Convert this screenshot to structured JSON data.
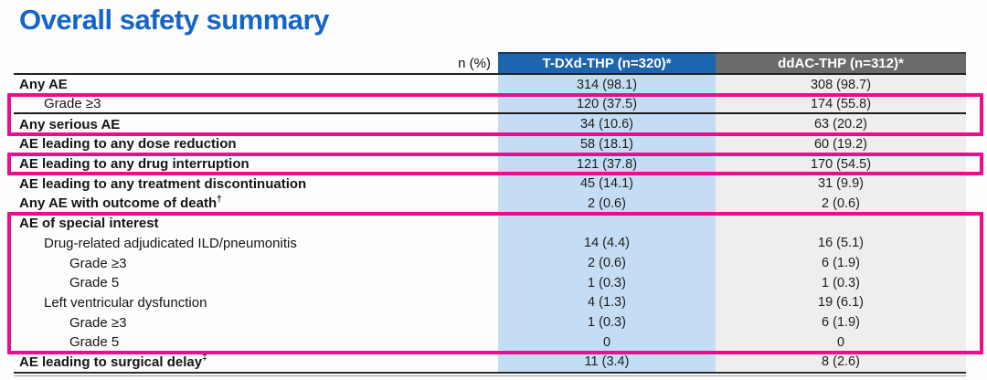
{
  "slide": {
    "title": "Overall safety summary"
  },
  "table": {
    "unit_label": "n (%)",
    "columns": [
      "T-DXd-THP (n=320)*",
      "ddAC-THP (n=312)*"
    ],
    "rows": [
      {
        "label": "Any AE",
        "v1": "314 (98.1)",
        "v2": "308 (98.7)"
      },
      {
        "label": "Grade ≥3",
        "v1": "120 (37.5)",
        "v2": "174 (55.8)"
      },
      {
        "label": "Any serious AE",
        "v1": "34 (10.6)",
        "v2": "63 (20.2)"
      },
      {
        "label": "AE leading to any dose reduction",
        "v1": "58 (18.1)",
        "v2": "60 (19.2)"
      },
      {
        "label": "AE leading to any drug interruption",
        "v1": "121 (37.8)",
        "v2": "170 (54.5)"
      },
      {
        "label": "AE leading to any treatment discontinuation",
        "v1": "45 (14.1)",
        "v2": "31 (9.9)"
      },
      {
        "label": "Any AE with outcome of death",
        "sup": "†",
        "v1": "2 (0.6)",
        "v2": "2 (0.6)"
      },
      {
        "label": "AE of special interest",
        "v1": "",
        "v2": ""
      },
      {
        "label": "Drug-related adjudicated ILD/pneumonitis",
        "v1": "14 (4.4)",
        "v2": "16 (5.1)"
      },
      {
        "label": "Grade ≥3",
        "v1": "2 (0.6)",
        "v2": "6 (1.9)"
      },
      {
        "label": "Grade 5",
        "v1": "1 (0.3)",
        "v2": "1 (0.3)"
      },
      {
        "label": "Left ventricular dysfunction",
        "v1": "4 (1.3)",
        "v2": "19 (6.1)"
      },
      {
        "label": "Grade ≥3",
        "v1": "1 (0.3)",
        "v2": "6 (1.9)"
      },
      {
        "label": "Grade 5",
        "v1": "0",
        "v2": "0"
      },
      {
        "label": "AE leading to surgical delay",
        "sup": "‡",
        "v1": "11 (3.4)",
        "v2": "8 (2.6)"
      }
    ]
  },
  "highlights": {
    "boxed_row_indexes": [
      [
        1,
        2
      ],
      [
        4
      ],
      [
        7,
        8,
        9,
        10,
        11,
        12,
        13
      ]
    ]
  },
  "colors": {
    "title_blue": "#1565C9",
    "header_blue": "#1D65AE",
    "header_gray": "#6B6B6D",
    "col_blue": "#C5DDF4",
    "col_gray": "#EFEEEC",
    "highlight_pink": "#EA0D8C"
  }
}
